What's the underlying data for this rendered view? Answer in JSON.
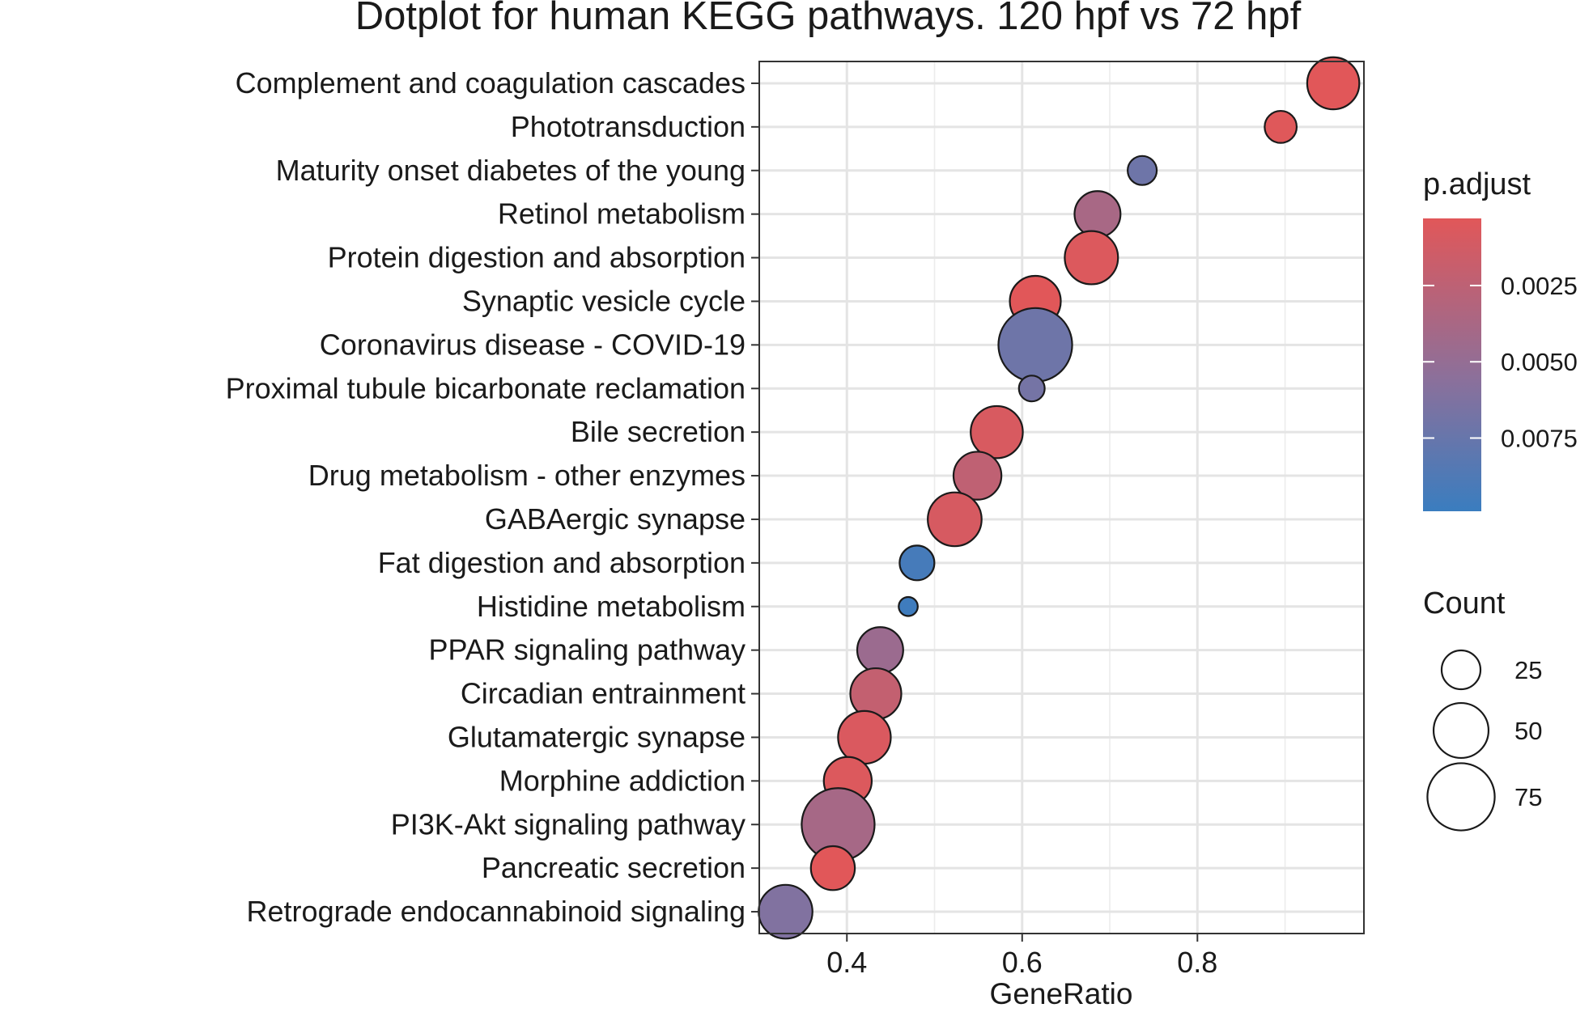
{
  "chart_data": {
    "type": "scatter",
    "title": "Dotplot for human KEGG pathways. 120 hpf vs 72 hpf",
    "xlabel": "GeneRatio",
    "ylabel": "",
    "xlim": [
      0.3,
      0.99
    ],
    "x_ticks": [
      "0.4",
      "0.6",
      "0.8"
    ],
    "grid": true,
    "categories": [
      "Complement and coagulation cascades",
      "Phototransduction",
      "Maturity onset diabetes of the young",
      "Retinol metabolism",
      "Protein digestion and absorption",
      "Synaptic vesicle cycle",
      "Coronavirus disease - COVID-19",
      "Proximal tubule bicarbonate reclamation",
      "Bile secretion",
      "Drug metabolism - other enzymes",
      "GABAergic synapse",
      "Fat digestion and absorption",
      "Histidine metabolism",
      "PPAR signaling pathway",
      "Circadian entrainment",
      "Glutamatergic synapse",
      "Morphine addiction",
      "PI3K-Akt signaling pathway",
      "Pancreatic secretion",
      "Retrograde endocannabinoid signaling"
    ],
    "points": [
      {
        "pathway": "Complement and coagulation cascades",
        "gene_ratio": 0.955,
        "count": 45,
        "p_adjust": 0.0003
      },
      {
        "pathway": "Phototransduction",
        "gene_ratio": 0.895,
        "count": 17,
        "p_adjust": 0.0004
      },
      {
        "pathway": "Maturity onset diabetes of the young",
        "gene_ratio": 0.737,
        "count": 14,
        "p_adjust": 0.0068
      },
      {
        "pathway": "Retinol metabolism",
        "gene_ratio": 0.686,
        "count": 35,
        "p_adjust": 0.0035
      },
      {
        "pathway": "Protein digestion and absorption",
        "gene_ratio": 0.679,
        "count": 47,
        "p_adjust": 0.0006
      },
      {
        "pathway": "Synaptic vesicle cycle",
        "gene_ratio": 0.615,
        "count": 43,
        "p_adjust": 0.0003
      },
      {
        "pathway": "Coronavirus disease - COVID-19",
        "gene_ratio": 0.615,
        "count": 90,
        "p_adjust": 0.0068
      },
      {
        "pathway": "Proximal tubule bicarbonate reclamation",
        "gene_ratio": 0.611,
        "count": 11,
        "p_adjust": 0.0064
      },
      {
        "pathway": "Bile secretion",
        "gene_ratio": 0.571,
        "count": 45,
        "p_adjust": 0.0008
      },
      {
        "pathway": "Drug metabolism - other enzymes",
        "gene_ratio": 0.549,
        "count": 38,
        "p_adjust": 0.0022
      },
      {
        "pathway": "GABAergic synapse",
        "gene_ratio": 0.523,
        "count": 48,
        "p_adjust": 0.0009
      },
      {
        "pathway": "Fat digestion and absorption",
        "gene_ratio": 0.48,
        "count": 20,
        "p_adjust": 0.0092
      },
      {
        "pathway": "Histidine metabolism",
        "gene_ratio": 0.47,
        "count": 6,
        "p_adjust": 0.0096
      },
      {
        "pathway": "PPAR signaling pathway",
        "gene_ratio": 0.438,
        "count": 35,
        "p_adjust": 0.0042
      },
      {
        "pathway": "Circadian entrainment",
        "gene_ratio": 0.433,
        "count": 43,
        "p_adjust": 0.002
      },
      {
        "pathway": "Glutamatergic synapse",
        "gene_ratio": 0.42,
        "count": 46,
        "p_adjust": 0.0007
      },
      {
        "pathway": "Morphine addiction",
        "gene_ratio": 0.401,
        "count": 38,
        "p_adjust": 0.0006
      },
      {
        "pathway": "PI3K-Akt signaling pathway",
        "gene_ratio": 0.39,
        "count": 88,
        "p_adjust": 0.0036
      },
      {
        "pathway": "Pancreatic secretion",
        "gene_ratio": 0.384,
        "count": 32,
        "p_adjust": 0.0003
      },
      {
        "pathway": "Retrograde endocannabinoid signaling",
        "gene_ratio": 0.33,
        "count": 48,
        "p_adjust": 0.0057
      }
    ],
    "legend_color": {
      "title": "p.adjust",
      "ticks": [
        "0.0025",
        "0.0050",
        "0.0075"
      ],
      "tick_values": [
        0.0025,
        0.005,
        0.0075
      ],
      "range": [
        0.0003,
        0.0099
      ],
      "low_color": "#e15759",
      "high_color": "#3a7dbf"
    },
    "legend_size": {
      "title": "Count",
      "values": [
        25,
        50,
        75
      ],
      "labels": [
        "25",
        "50",
        "75"
      ]
    },
    "legend_placement": "right"
  }
}
